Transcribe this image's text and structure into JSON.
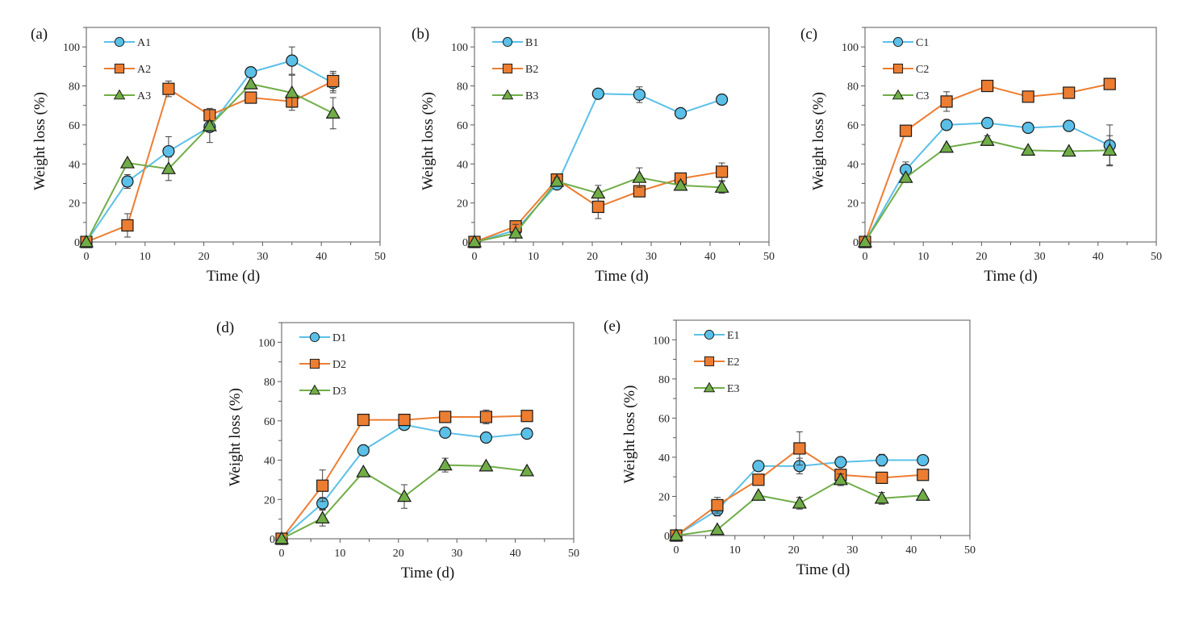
{
  "chart_data": [
    {
      "type": "line",
      "panel": "(a)",
      "xlabel": "Time (d)",
      "ylabel": "Weight loss (%)",
      "xlim": [
        0,
        50
      ],
      "ylim": [
        0,
        110
      ],
      "xticks": [
        0,
        10,
        20,
        30,
        40,
        50
      ],
      "yticks": [
        0,
        20,
        40,
        60,
        80,
        100
      ],
      "grid": false,
      "legend_position": "top-left",
      "x": [
        0,
        7,
        14,
        21,
        28,
        35,
        42
      ],
      "series": [
        {
          "name": "A1",
          "marker": "circle",
          "color": "#5bc0e8",
          "values": [
            0,
            31,
            46.5,
            59,
            87,
            93,
            81.5
          ],
          "errors": [
            0,
            3.5,
            7.5,
            2,
            2.5,
            7,
            5
          ]
        },
        {
          "name": "A2",
          "marker": "square",
          "color": "#ed7d31",
          "values": [
            0,
            8.5,
            78.5,
            65,
            74,
            72,
            82.5
          ],
          "errors": [
            0,
            6,
            4,
            3.5,
            2,
            3,
            5
          ]
        },
        {
          "name": "A3",
          "marker": "triangle",
          "color": "#70ad47",
          "values": [
            0,
            40.5,
            37.5,
            59.5,
            81,
            76.5,
            66
          ],
          "errors": [
            0,
            0,
            6,
            8.5,
            0,
            9,
            8
          ]
        }
      ]
    },
    {
      "type": "line",
      "panel": "(b)",
      "xlabel": "Time (d)",
      "ylabel": "Weight loss (%)",
      "xlim": [
        0,
        50
      ],
      "ylim": [
        0,
        110
      ],
      "xticks": [
        0,
        10,
        20,
        30,
        40,
        50
      ],
      "yticks": [
        0,
        20,
        40,
        60,
        80,
        100
      ],
      "grid": false,
      "legend_position": "top-left",
      "x": [
        0,
        7,
        14,
        21,
        28,
        35,
        42
      ],
      "series": [
        {
          "name": "B1",
          "marker": "circle",
          "color": "#5bc0e8",
          "values": [
            0,
            6,
            29.5,
            76,
            75.5,
            66,
            73
          ],
          "errors": [
            0,
            2,
            2,
            2.5,
            4,
            1.5,
            1.5
          ]
        },
        {
          "name": "B2",
          "marker": "square",
          "color": "#ed7d31",
          "values": [
            0,
            8,
            32,
            18,
            26,
            32.5,
            36
          ],
          "errors": [
            0,
            2,
            2,
            6,
            2,
            2.5,
            4.5
          ]
        },
        {
          "name": "B3",
          "marker": "triangle",
          "color": "#70ad47",
          "values": [
            0,
            4.5,
            31,
            25,
            33,
            29,
            28
          ],
          "errors": [
            0,
            4.5,
            2,
            4,
            5,
            2,
            3
          ]
        }
      ]
    },
    {
      "type": "line",
      "panel": "(c)",
      "xlabel": "Time (d)",
      "ylabel": "Weight loss (%)",
      "xlim": [
        0,
        50
      ],
      "ylim": [
        0,
        110
      ],
      "xticks": [
        0,
        10,
        20,
        30,
        40,
        50
      ],
      "yticks": [
        0,
        20,
        40,
        60,
        80,
        100
      ],
      "grid": false,
      "legend_position": "top-left",
      "x": [
        0,
        7,
        14,
        21,
        28,
        35,
        42
      ],
      "series": [
        {
          "name": "C1",
          "marker": "circle",
          "color": "#5bc0e8",
          "values": [
            0,
            37,
            60,
            61,
            58.5,
            59.5,
            49.5
          ],
          "errors": [
            0,
            4,
            1,
            1.5,
            1,
            1.5,
            10.5
          ]
        },
        {
          "name": "C2",
          "marker": "square",
          "color": "#ed7d31",
          "values": [
            0,
            57,
            72,
            80,
            74.5,
            76.5,
            81
          ],
          "errors": [
            0,
            1,
            5,
            1,
            1,
            1,
            1
          ]
        },
        {
          "name": "C3",
          "marker": "triangle",
          "color": "#70ad47",
          "values": [
            0,
            33,
            48.5,
            52,
            47,
            46.5,
            47
          ],
          "errors": [
            0,
            1.5,
            1,
            2.5,
            1,
            1,
            7.5
          ]
        }
      ]
    },
    {
      "type": "line",
      "panel": "(d)",
      "xlabel": "Time (d)",
      "ylabel": "Weight loss (%)",
      "xlim": [
        0,
        50
      ],
      "ylim": [
        0,
        110
      ],
      "xticks": [
        0,
        10,
        20,
        30,
        40,
        50
      ],
      "yticks": [
        0,
        20,
        40,
        60,
        80,
        100
      ],
      "grid": false,
      "legend_position": "top-left",
      "x": [
        0,
        7,
        14,
        21,
        28,
        35,
        42
      ],
      "series": [
        {
          "name": "D1",
          "marker": "circle",
          "color": "#5bc0e8",
          "values": [
            0,
            18,
            45,
            58,
            54,
            51.5,
            53.5
          ],
          "errors": [
            0,
            3,
            1,
            1.5,
            1,
            1,
            1
          ]
        },
        {
          "name": "D2",
          "marker": "square",
          "color": "#ed7d31",
          "values": [
            0,
            27,
            60.5,
            60.5,
            62,
            62,
            62.5
          ],
          "errors": [
            0,
            8,
            1,
            1,
            1,
            3.5,
            1
          ]
        },
        {
          "name": "D3",
          "marker": "triangle",
          "color": "#70ad47",
          "values": [
            0,
            10.5,
            34,
            21.5,
            37.5,
            37,
            34.5
          ],
          "errors": [
            0,
            4,
            1,
            6,
            3.5,
            1,
            1
          ]
        }
      ]
    },
    {
      "type": "line",
      "panel": "(e)",
      "xlabel": "Time (d)",
      "ylabel": "Weight loss (%)",
      "xlim": [
        0,
        50
      ],
      "ylim": [
        0,
        110
      ],
      "xticks": [
        0,
        10,
        20,
        30,
        40,
        50
      ],
      "yticks": [
        0,
        20,
        40,
        60,
        80,
        100
      ],
      "grid": false,
      "legend_position": "top-left",
      "x": [
        0,
        7,
        14,
        21,
        28,
        35,
        42
      ],
      "series": [
        {
          "name": "E1",
          "marker": "circle",
          "color": "#5bc0e8",
          "values": [
            0,
            13,
            35.5,
            35.5,
            37.5,
            38.5,
            38.5
          ],
          "errors": [
            0,
            3,
            1,
            4,
            1,
            3,
            1
          ]
        },
        {
          "name": "E2",
          "marker": "square",
          "color": "#ed7d31",
          "values": [
            0,
            15.5,
            28.5,
            44.5,
            31,
            29.5,
            31
          ],
          "errors": [
            0,
            4,
            1,
            8.5,
            1,
            1,
            1
          ]
        },
        {
          "name": "E3",
          "marker": "triangle",
          "color": "#70ad47",
          "values": [
            0,
            3,
            20.5,
            16.5,
            28.5,
            19,
            20.5
          ],
          "errors": [
            0,
            1,
            1,
            3,
            3,
            3,
            1
          ]
        }
      ]
    }
  ]
}
